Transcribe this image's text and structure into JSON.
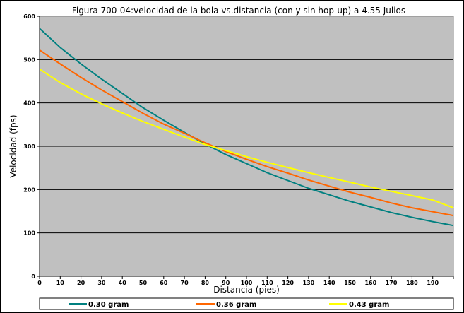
{
  "chart_data": {
    "type": "line",
    "title": "Figura 700-04:velocidad de la bola vs.distancia (con y sin hop-up) a 4.55 Julios",
    "xlabel": "Distancia (pies)",
    "ylabel": "Velocidad (fps)",
    "xlim": [
      0,
      200
    ],
    "ylim": [
      0,
      600
    ],
    "xticks": [
      "0",
      "10",
      "20",
      "30",
      "40",
      "50",
      "60",
      "70",
      "80",
      "90",
      "100",
      "110",
      "120",
      "130",
      "140",
      "150",
      "160",
      "170",
      "180",
      "190"
    ],
    "yticks": [
      "0",
      "100",
      "200",
      "300",
      "400",
      "500",
      "600"
    ],
    "grid": "horizontal",
    "background": "#c0c0c0",
    "legend_position": "bottom",
    "x": [
      0,
      10,
      20,
      30,
      40,
      50,
      60,
      70,
      80,
      90,
      100,
      110,
      120,
      130,
      140,
      150,
      160,
      170,
      180,
      190,
      200
    ],
    "series": [
      {
        "name": "0.30 gram",
        "color": "#008080",
        "values": [
          572,
          528,
          490,
          455,
          422,
          389,
          360,
          332,
          305,
          281,
          260,
          239,
          221,
          203,
          188,
          173,
          160,
          147,
          136,
          126,
          117
        ]
      },
      {
        "name": "0.36 gram",
        "color": "#ff6600",
        "values": [
          522,
          490,
          459,
          430,
          403,
          376,
          351,
          330,
          308,
          288,
          270,
          253,
          238,
          222,
          208,
          194,
          182,
          169,
          158,
          149,
          140
        ]
      },
      {
        "name": "0.43 gram",
        "color": "#ffff00",
        "values": [
          478,
          447,
          421,
          398,
          377,
          357,
          339,
          321,
          304,
          290,
          276,
          263,
          251,
          239,
          228,
          217,
          206,
          196,
          186,
          176,
          158
        ]
      }
    ]
  }
}
